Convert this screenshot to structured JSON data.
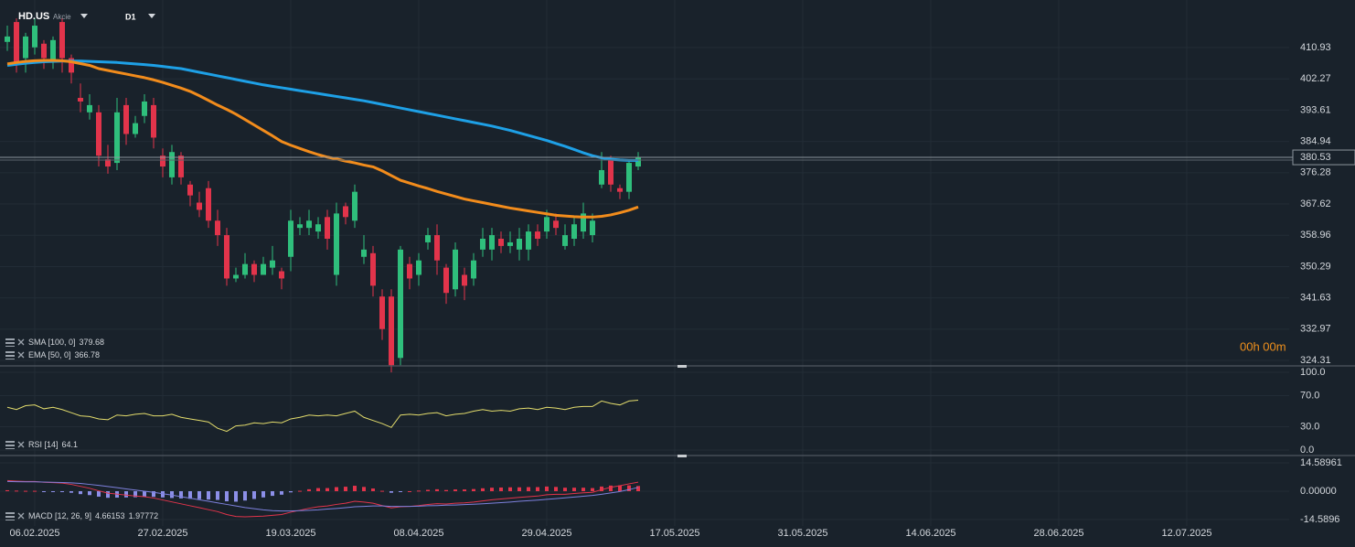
{
  "header": {
    "symbol": "HD.US",
    "asset_type": "Akcie",
    "timeframe": "D1",
    "countdown": "00h 00m"
  },
  "time_axis": {
    "labels": [
      "06.02.2025",
      "27.02.2025",
      "19.03.2025",
      "08.04.2025",
      "29.04.2025",
      "17.05.2025",
      "31.05.2025",
      "14.06.2025",
      "28.06.2025",
      "12.07.2025"
    ]
  },
  "chart_data": [
    {
      "type": "candlestick",
      "up_color": "#2fbf7c",
      "down_color": "#e2344b",
      "open": [
        412.5,
        418,
        408,
        411,
        412,
        407,
        418,
        408,
        397,
        393,
        393,
        380,
        379,
        395,
        387,
        392,
        395,
        381,
        375,
        381,
        373,
        368,
        372,
        363,
        359,
        347,
        348,
        351,
        348,
        350,
        349,
        353,
        361,
        361,
        360,
        364,
        348,
        367,
        363,
        353,
        354,
        342,
        342,
        325,
        351,
        348,
        357,
        359,
        350,
        344,
        348,
        347,
        355,
        355,
        358,
        356,
        355,
        355,
        360,
        360,
        363,
        356,
        358,
        360,
        359,
        373,
        380,
        372,
        371,
        378
      ],
      "high": [
        417,
        419,
        415,
        419,
        413,
        414,
        419,
        409,
        401,
        398,
        395,
        384,
        397,
        397,
        392,
        398,
        397,
        383,
        384,
        382,
        374,
        371,
        374,
        366,
        361,
        350,
        354,
        352,
        353,
        356,
        350,
        366,
        364,
        366,
        364,
        366,
        368,
        368,
        373,
        359,
        356,
        344,
        344,
        356,
        353,
        354,
        361,
        362,
        351,
        357,
        350,
        354,
        361,
        361,
        360,
        360,
        361,
        362,
        362,
        366,
        365,
        362,
        364,
        368,
        365,
        382,
        381,
        373,
        380,
        382
      ],
      "low": [
        410,
        404,
        404,
        409,
        405,
        405,
        404,
        401,
        393,
        391,
        378,
        376,
        377,
        384,
        386,
        390,
        383,
        375,
        373,
        373,
        367,
        364,
        361,
        356,
        345,
        346,
        347,
        346,
        348,
        348,
        344,
        349,
        359,
        359,
        358,
        355,
        345,
        362,
        361,
        351,
        342,
        330,
        321,
        323,
        344,
        345,
        355,
        348,
        340,
        342,
        341,
        345,
        353,
        352,
        354,
        354,
        352,
        352,
        356,
        358,
        359,
        355,
        356,
        358,
        357,
        372,
        371,
        369,
        369,
        377
      ],
      "close": [
        414,
        406,
        414,
        417,
        408,
        413,
        408,
        404,
        396,
        395,
        381,
        378,
        393,
        387,
        390,
        396,
        386,
        378,
        382,
        375,
        370,
        366,
        363,
        359,
        347,
        348,
        351,
        348,
        351,
        352,
        347,
        363,
        362,
        363,
        362,
        358,
        365,
        364,
        371,
        355,
        345,
        333,
        323,
        355,
        347,
        352,
        359,
        352,
        343,
        355,
        345,
        352,
        358,
        359,
        356,
        357,
        358,
        360,
        358,
        364,
        361,
        359,
        362,
        365,
        363,
        377,
        373,
        371,
        379,
        380.53
      ],
      "series": [
        {
          "name": "SMA [100, 0]",
          "color": "#1ea0e6",
          "values": [
            406.0,
            406.3,
            406.6,
            406.8,
            407.0,
            407.1,
            407.2,
            407.2,
            407.2,
            407.1,
            407.0,
            406.9,
            406.8,
            406.6,
            406.4,
            406.2,
            406.0,
            405.7,
            405.4,
            405.1,
            404.6,
            404.1,
            403.6,
            403.1,
            402.6,
            402.1,
            401.6,
            401.1,
            400.6,
            400.2,
            399.8,
            399.4,
            399.0,
            398.6,
            398.2,
            397.8,
            397.4,
            397.0,
            396.6,
            396.2,
            395.7,
            395.2,
            394.7,
            394.2,
            393.7,
            393.2,
            392.7,
            392.2,
            391.7,
            391.2,
            390.7,
            390.2,
            389.7,
            389.2,
            388.6,
            388.0,
            387.3,
            386.6,
            385.9,
            385.2,
            384.4,
            383.6,
            382.7,
            381.8,
            381.0,
            380.4,
            380.0,
            379.8,
            379.7,
            379.68
          ]
        },
        {
          "name": "EMA [50, 0]",
          "color": "#f28c1c",
          "values": [
            406.4,
            406.8,
            407.1,
            407.3,
            407.4,
            407.4,
            407.3,
            407.0,
            406.5,
            406.0,
            405.1,
            404.6,
            404.1,
            403.6,
            403.1,
            402.6,
            402.0,
            401.3,
            400.5,
            399.7,
            398.8,
            397.6,
            396.3,
            395.0,
            393.8,
            392.5,
            391.0,
            389.5,
            388.0,
            386.5,
            384.9,
            383.9,
            383.0,
            382.1,
            381.3,
            380.6,
            380.1,
            379.5,
            379.0,
            378.4,
            377.9,
            376.8,
            375.5,
            374.2,
            373.4,
            372.6,
            371.9,
            371.1,
            370.4,
            369.7,
            369.0,
            368.5,
            368.0,
            367.5,
            367.0,
            366.5,
            366.1,
            365.7,
            365.3,
            364.9,
            364.5,
            364.3,
            364.1,
            364.0,
            364.0,
            364.2,
            364.6,
            365.2,
            365.9,
            366.78
          ]
        }
      ],
      "last_price": 380.53,
      "ylim": [
        322.8,
        424.1
      ],
      "yticks": [
        410.93,
        402.27,
        393.61,
        384.94,
        376.28,
        367.62,
        358.96,
        350.29,
        341.63,
        332.97,
        324.31
      ],
      "grid": true
    },
    {
      "type": "line",
      "series": [
        {
          "name": "RSI [14]",
          "color": "#e3dc6c",
          "values": [
            55,
            52,
            57,
            58,
            53,
            55,
            52,
            48,
            44,
            43,
            40,
            39,
            45,
            44,
            46,
            47,
            44,
            44,
            46,
            42,
            40,
            38,
            36,
            28,
            24,
            31,
            32,
            35,
            34,
            36,
            35,
            40,
            42,
            45,
            44,
            45,
            44,
            47,
            50,
            42,
            38,
            34,
            29,
            45,
            46,
            45,
            47,
            48,
            44,
            46,
            47,
            50,
            52,
            50,
            51,
            50,
            53,
            54,
            52,
            55,
            54,
            52,
            55,
            56,
            56,
            63,
            60,
            58,
            63,
            64.1
          ]
        }
      ],
      "ylim": [
        -7.1,
        108.2
      ],
      "yticks": [
        {
          "value": 100,
          "label": "100.0"
        },
        {
          "value": 70,
          "label": "70.0"
        },
        {
          "value": 30,
          "label": "30.0"
        },
        {
          "value": 0,
          "label": "0.0"
        }
      ],
      "grid": true
    },
    {
      "type": "macd",
      "name": "MACD [12, 26, 9]",
      "histogram": {
        "up_color": "#e2344b",
        "down_color": "#8c8fe8",
        "values": [
          0.5,
          0.3,
          0.2,
          0.2,
          -0.1,
          -0.2,
          -0.3,
          -0.8,
          -1.5,
          -2.0,
          -2.8,
          -3.4,
          -3.3,
          -3.2,
          -3.1,
          -2.8,
          -2.9,
          -3.2,
          -3.5,
          -3.7,
          -3.9,
          -4.1,
          -4.3,
          -4.5,
          -5.2,
          -5.4,
          -4.8,
          -4.0,
          -3.2,
          -2.4,
          -1.8,
          -0.6,
          0.2,
          1.0,
          1.6,
          1.6,
          2.1,
          2.3,
          2.8,
          2.2,
          1.4,
          0.2,
          -0.8,
          -0.2,
          0.0,
          0.3,
          0.7,
          1.0,
          0.6,
          0.9,
          0.9,
          1.1,
          1.5,
          1.8,
          1.9,
          2.0,
          2.0,
          2.1,
          2.1,
          2.4,
          2.2,
          1.8,
          1.8,
          1.8,
          1.6,
          2.4,
          2.9,
          3.0,
          3.0,
          2.68
        ]
      },
      "series": [
        {
          "color": "#e2344b",
          "values": [
            5.5,
            5.2,
            5.0,
            5.0,
            4.6,
            4.4,
            4.2,
            3.5,
            2.5,
            1.5,
            0.2,
            -1.0,
            -1.5,
            -2.0,
            -2.5,
            -2.8,
            -3.5,
            -4.5,
            -5.5,
            -6.5,
            -7.5,
            -8.5,
            -9.5,
            -10.5,
            -12.0,
            -13.0,
            -13.2,
            -13.0,
            -12.8,
            -12.4,
            -12.0,
            -10.8,
            -9.8,
            -8.8,
            -8.0,
            -7.6,
            -6.8,
            -6.2,
            -5.2,
            -5.6,
            -6.2,
            -7.4,
            -8.6,
            -8.0,
            -7.8,
            -7.4,
            -6.8,
            -6.4,
            -6.6,
            -6.2,
            -6.0,
            -5.6,
            -5.0,
            -4.4,
            -4.0,
            -3.6,
            -3.2,
            -2.8,
            -2.5,
            -1.8,
            -1.6,
            -1.6,
            -1.2,
            -0.8,
            -0.6,
            0.8,
            2.0,
            2.8,
            3.8,
            4.66153
          ]
        },
        {
          "color": "#7d80dc",
          "values": [
            5.0,
            4.9,
            4.8,
            4.8,
            4.7,
            4.6,
            4.5,
            4.3,
            4.0,
            3.5,
            3.0,
            2.4,
            1.8,
            1.2,
            0.6,
            0.0,
            -0.6,
            -1.3,
            -2.0,
            -2.8,
            -3.6,
            -4.4,
            -5.2,
            -6.0,
            -6.8,
            -7.6,
            -8.4,
            -9.0,
            -9.6,
            -10.0,
            -10.2,
            -10.2,
            -10.0,
            -9.8,
            -9.6,
            -9.2,
            -8.9,
            -8.5,
            -8.0,
            -7.8,
            -7.6,
            -7.6,
            -7.8,
            -7.8,
            -7.8,
            -7.7,
            -7.5,
            -7.4,
            -7.2,
            -7.1,
            -6.9,
            -6.7,
            -6.5,
            -6.2,
            -5.9,
            -5.6,
            -5.2,
            -4.9,
            -4.6,
            -4.2,
            -3.8,
            -3.4,
            -3.0,
            -2.6,
            -2.2,
            -1.6,
            -0.9,
            -0.2,
            0.8,
            1.97772
          ]
        }
      ],
      "ylim": [
        -17.89,
        18.36
      ],
      "yticks": [
        14.58961,
        {
          "value": 0,
          "label": "0.00000"
        },
        {
          "value": -14.58961,
          "label": "-14.5896"
        }
      ],
      "grid": true
    }
  ]
}
